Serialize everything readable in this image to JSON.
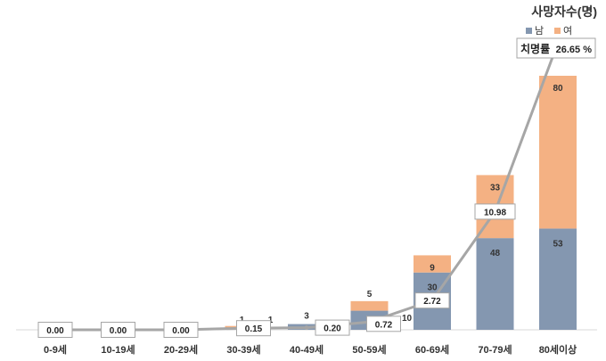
{
  "chart_data": {
    "type": "bar",
    "stacked": true,
    "title": "사망자수(명)",
    "categories": [
      "0-9세",
      "10-19세",
      "20-29세",
      "30-39세",
      "40-49세",
      "50-59세",
      "60-69세",
      "70-79세",
      "80세이상"
    ],
    "series": [
      {
        "name": "남",
        "color": "#8497b0",
        "values": [
          0,
          0,
          0,
          1,
          3,
          10,
          30,
          48,
          53
        ]
      },
      {
        "name": "여",
        "color": "#f4b183",
        "values": [
          0,
          0,
          0,
          1,
          0,
          5,
          9,
          33,
          80
        ]
      }
    ],
    "segment_labels": [
      {
        "male": "",
        "female": ""
      },
      {
        "male": "",
        "female": ""
      },
      {
        "male": "",
        "female": ""
      },
      {
        "male": "1",
        "female": "1"
      },
      {
        "male": "3",
        "female": ""
      },
      {
        "male": "10",
        "female": "5"
      },
      {
        "male": "30",
        "female": "9"
      },
      {
        "male": "48",
        "female": "33"
      },
      {
        "male": "53",
        "female": "80"
      }
    ],
    "line": {
      "name": "치명률",
      "color": "#a6a6a6",
      "values": [
        0.0,
        0.0,
        0.0,
        0.15,
        0.2,
        0.72,
        2.72,
        10.98,
        26.65
      ],
      "labels": [
        "0.00",
        "0.00",
        "0.00",
        "0.15",
        "0.20",
        "0.72",
        "2.72",
        "10.98",
        "26.65 %"
      ]
    },
    "callout_label": "치명률",
    "ylim_count": [
      0,
      140
    ],
    "ylim_rate": [
      0,
      30
    ],
    "legend_position": "top-right",
    "grid": false
  }
}
